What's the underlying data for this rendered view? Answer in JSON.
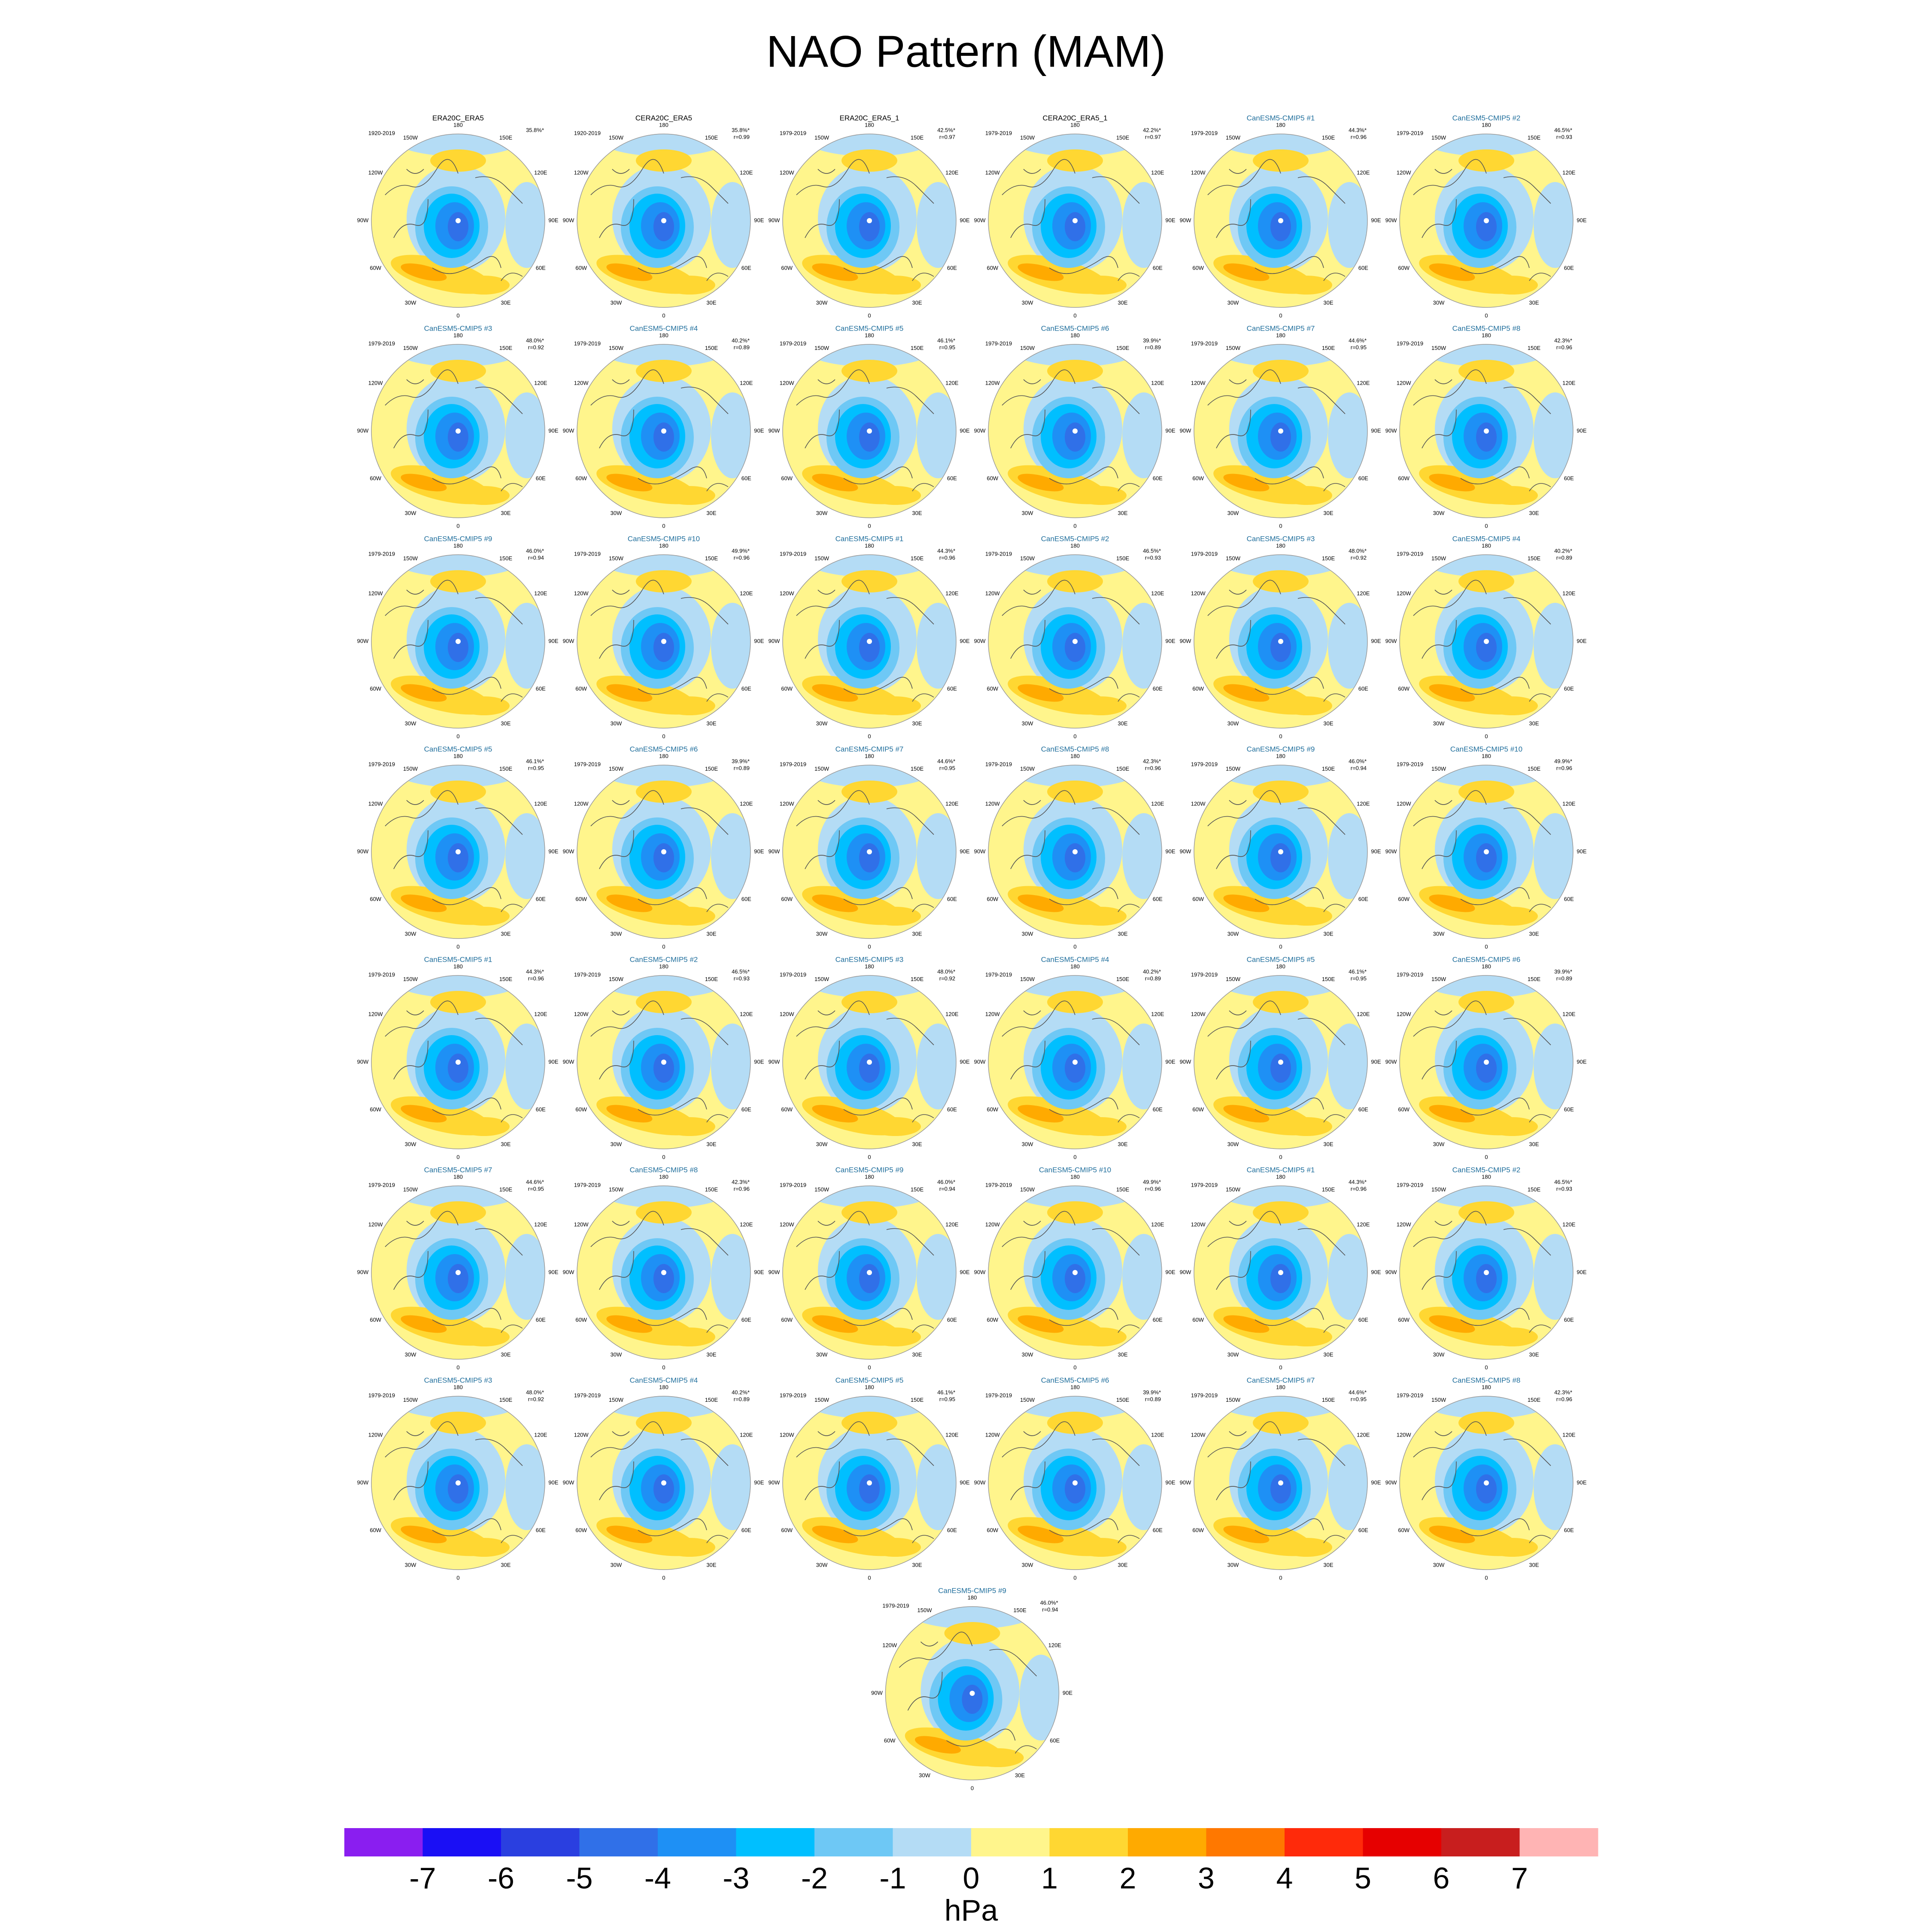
{
  "title": "NAO Pattern (MAM)",
  "longitude_labels": [
    "180",
    "150W",
    "150E",
    "120W",
    "120E",
    "90W",
    "90E",
    "60W",
    "60E",
    "30W",
    "30E",
    "0"
  ],
  "panels": [
    {
      "title": "ERA20C_ERA5",
      "title_color": "#000000",
      "period": "1920-2019",
      "explained": "35.8%*"
    },
    {
      "title": "CERA20C_ERA5",
      "title_color": "#000000",
      "period": "1920-2019",
      "explained": "35.8%*",
      "r": "r=0.99"
    },
    {
      "title": "ERA20C_ERA5_1",
      "title_color": "#000000",
      "period": "1979-2019",
      "explained": "42.5%*",
      "r": "r=0.97"
    },
    {
      "title": "CERA20C_ERA5_1",
      "title_color": "#000000",
      "period": "1979-2019",
      "explained": "42.2%*",
      "r": "r=0.97"
    },
    {
      "title": "CanESM5-CMIP5 #1",
      "title_color": "#1f6e9c",
      "period": "1979-2019",
      "explained": "44.3%*",
      "r": "r=0.96"
    },
    {
      "title": "CanESM5-CMIP5 #2",
      "title_color": "#1f6e9c",
      "period": "1979-2019",
      "explained": "46.5%*",
      "r": "r=0.93"
    },
    {
      "title": "CanESM5-CMIP5 #3",
      "title_color": "#1f6e9c",
      "period": "1979-2019",
      "explained": "48.0%*",
      "r": "r=0.92"
    },
    {
      "title": "CanESM5-CMIP5 #4",
      "title_color": "#1f6e9c",
      "period": "1979-2019",
      "explained": "40.2%*",
      "r": "r=0.89"
    },
    {
      "title": "CanESM5-CMIP5 #5",
      "title_color": "#1f6e9c",
      "period": "1979-2019",
      "explained": "46.1%*",
      "r": "r=0.95"
    },
    {
      "title": "CanESM5-CMIP5 #6",
      "title_color": "#1f6e9c",
      "period": "1979-2019",
      "explained": "39.9%*",
      "r": "r=0.89"
    },
    {
      "title": "CanESM5-CMIP5 #7",
      "title_color": "#1f6e9c",
      "period": "1979-2019",
      "explained": "44.6%*",
      "r": "r=0.95"
    },
    {
      "title": "CanESM5-CMIP5 #8",
      "title_color": "#1f6e9c",
      "period": "1979-2019",
      "explained": "42.3%*",
      "r": "r=0.96"
    },
    {
      "title": "CanESM5-CMIP5 #9",
      "title_color": "#1f6e9c",
      "period": "1979-2019",
      "explained": "46.0%*",
      "r": "r=0.94"
    },
    {
      "title": "CanESM5-CMIP5 #10",
      "title_color": "#1f6e9c",
      "period": "1979-2019",
      "explained": "49.9%*",
      "r": "r=0.96"
    },
    {
      "title": "CanESM5-CMIP5 #1",
      "title_color": "#1f6e9c",
      "period": "1979-2019",
      "explained": "44.3%*",
      "r": "r=0.96"
    },
    {
      "title": "CanESM5-CMIP5 #2",
      "title_color": "#1f6e9c",
      "period": "1979-2019",
      "explained": "46.5%*",
      "r": "r=0.93"
    },
    {
      "title": "CanESM5-CMIP5 #3",
      "title_color": "#1f6e9c",
      "period": "1979-2019",
      "explained": "48.0%*",
      "r": "r=0.92"
    },
    {
      "title": "CanESM5-CMIP5 #4",
      "title_color": "#1f6e9c",
      "period": "1979-2019",
      "explained": "40.2%*",
      "r": "r=0.89"
    },
    {
      "title": "CanESM5-CMIP5 #5",
      "title_color": "#1f6e9c",
      "period": "1979-2019",
      "explained": "46.1%*",
      "r": "r=0.95"
    },
    {
      "title": "CanESM5-CMIP5 #6",
      "title_color": "#1f6e9c",
      "period": "1979-2019",
      "explained": "39.9%*",
      "r": "r=0.89"
    },
    {
      "title": "CanESM5-CMIP5 #7",
      "title_color": "#1f6e9c",
      "period": "1979-2019",
      "explained": "44.6%*",
      "r": "r=0.95"
    },
    {
      "title": "CanESM5-CMIP5 #8",
      "title_color": "#1f6e9c",
      "period": "1979-2019",
      "explained": "42.3%*",
      "r": "r=0.96"
    },
    {
      "title": "CanESM5-CMIP5 #9",
      "title_color": "#1f6e9c",
      "period": "1979-2019",
      "explained": "46.0%*",
      "r": "r=0.94"
    },
    {
      "title": "CanESM5-CMIP5 #10",
      "title_color": "#1f6e9c",
      "period": "1979-2019",
      "explained": "49.9%*",
      "r": "r=0.96"
    },
    {
      "title": "CanESM5-CMIP5 #1",
      "title_color": "#1f6e9c",
      "period": "1979-2019",
      "explained": "44.3%*",
      "r": "r=0.96"
    },
    {
      "title": "CanESM5-CMIP5 #2",
      "title_color": "#1f6e9c",
      "period": "1979-2019",
      "explained": "46.5%*",
      "r": "r=0.93"
    },
    {
      "title": "CanESM5-CMIP5 #3",
      "title_color": "#1f6e9c",
      "period": "1979-2019",
      "explained": "48.0%*",
      "r": "r=0.92"
    },
    {
      "title": "CanESM5-CMIP5 #4",
      "title_color": "#1f6e9c",
      "period": "1979-2019",
      "explained": "40.2%*",
      "r": "r=0.89"
    },
    {
      "title": "CanESM5-CMIP5 #5",
      "title_color": "#1f6e9c",
      "period": "1979-2019",
      "explained": "46.1%*",
      "r": "r=0.95"
    },
    {
      "title": "CanESM5-CMIP5 #6",
      "title_color": "#1f6e9c",
      "period": "1979-2019",
      "explained": "39.9%*",
      "r": "r=0.89"
    },
    {
      "title": "CanESM5-CMIP5 #7",
      "title_color": "#1f6e9c",
      "period": "1979-2019",
      "explained": "44.6%*",
      "r": "r=0.95"
    },
    {
      "title": "CanESM5-CMIP5 #8",
      "title_color": "#1f6e9c",
      "period": "1979-2019",
      "explained": "42.3%*",
      "r": "r=0.96"
    },
    {
      "title": "CanESM5-CMIP5 #9",
      "title_color": "#1f6e9c",
      "period": "1979-2019",
      "explained": "46.0%*",
      "r": "r=0.94"
    },
    {
      "title": "CanESM5-CMIP5 #10",
      "title_color": "#1f6e9c",
      "period": "1979-2019",
      "explained": "49.9%*",
      "r": "r=0.96"
    },
    {
      "title": "CanESM5-CMIP5 #1",
      "title_color": "#1f6e9c",
      "period": "1979-2019",
      "explained": "44.3%*",
      "r": "r=0.96"
    },
    {
      "title": "CanESM5-CMIP5 #2",
      "title_color": "#1f6e9c",
      "period": "1979-2019",
      "explained": "46.5%*",
      "r": "r=0.93"
    },
    {
      "title": "CanESM5-CMIP5 #3",
      "title_color": "#1f6e9c",
      "period": "1979-2019",
      "explained": "48.0%*",
      "r": "r=0.92"
    },
    {
      "title": "CanESM5-CMIP5 #4",
      "title_color": "#1f6e9c",
      "period": "1979-2019",
      "explained": "40.2%*",
      "r": "r=0.89"
    },
    {
      "title": "CanESM5-CMIP5 #5",
      "title_color": "#1f6e9c",
      "period": "1979-2019",
      "explained": "46.1%*",
      "r": "r=0.95"
    },
    {
      "title": "CanESM5-CMIP5 #6",
      "title_color": "#1f6e9c",
      "period": "1979-2019",
      "explained": "39.9%*",
      "r": "r=0.89"
    },
    {
      "title": "CanESM5-CMIP5 #7",
      "title_color": "#1f6e9c",
      "period": "1979-2019",
      "explained": "44.6%*",
      "r": "r=0.95"
    },
    {
      "title": "CanESM5-CMIP5 #8",
      "title_color": "#1f6e9c",
      "period": "1979-2019",
      "explained": "42.3%*",
      "r": "r=0.96"
    },
    {
      "title": "CanESM5-CMIP5 #9",
      "title_color": "#1f6e9c",
      "period": "1979-2019",
      "explained": "46.0%*",
      "r": "r=0.94"
    }
  ],
  "colorbar": {
    "colors": [
      "#8a1ef0",
      "#1a0ff5",
      "#2a3fe0",
      "#3070e8",
      "#1e90f5",
      "#00bfff",
      "#6ec8f5",
      "#b4dcf5",
      "#fff58c",
      "#ffd732",
      "#ffaa00",
      "#ff7800",
      "#ff2a0a",
      "#e60000",
      "#c81e1e",
      "#ffb4b4"
    ],
    "ticks": [
      -7,
      -6,
      -5,
      -4,
      -3,
      -2,
      -1,
      0,
      1,
      2,
      3,
      4,
      5,
      6,
      7
    ],
    "label": "hPa"
  }
}
